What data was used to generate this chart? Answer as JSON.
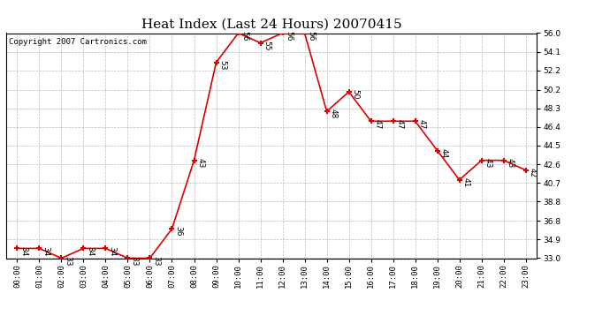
{
  "title": "Heat Index (Last 24 Hours) 20070415",
  "copyright": "Copyright 2007 Cartronics.com",
  "hours": [
    "00:00",
    "01:00",
    "02:00",
    "03:00",
    "04:00",
    "05:00",
    "06:00",
    "07:00",
    "08:00",
    "09:00",
    "10:00",
    "11:00",
    "12:00",
    "13:00",
    "14:00",
    "15:00",
    "16:00",
    "17:00",
    "18:00",
    "19:00",
    "20:00",
    "21:00",
    "22:00",
    "23:00"
  ],
  "values": [
    34,
    34,
    33,
    34,
    34,
    33,
    33,
    36,
    43,
    53,
    56,
    55,
    56,
    56,
    48,
    50,
    47,
    47,
    47,
    44,
    41,
    43,
    43,
    42
  ],
  "line_color": "#dd0000",
  "marker_color": "#dd0000",
  "bg_color": "#ffffff",
  "grid_color": "#bbbbbb",
  "ylim_min": 33.0,
  "ylim_max": 56.0,
  "yticks": [
    33.0,
    34.9,
    36.8,
    38.8,
    40.7,
    42.6,
    44.5,
    46.4,
    48.3,
    50.2,
    52.2,
    54.1,
    56.0
  ],
  "title_fontsize": 11,
  "label_fontsize": 6.5,
  "tick_fontsize": 6.5,
  "copyright_fontsize": 6.5
}
